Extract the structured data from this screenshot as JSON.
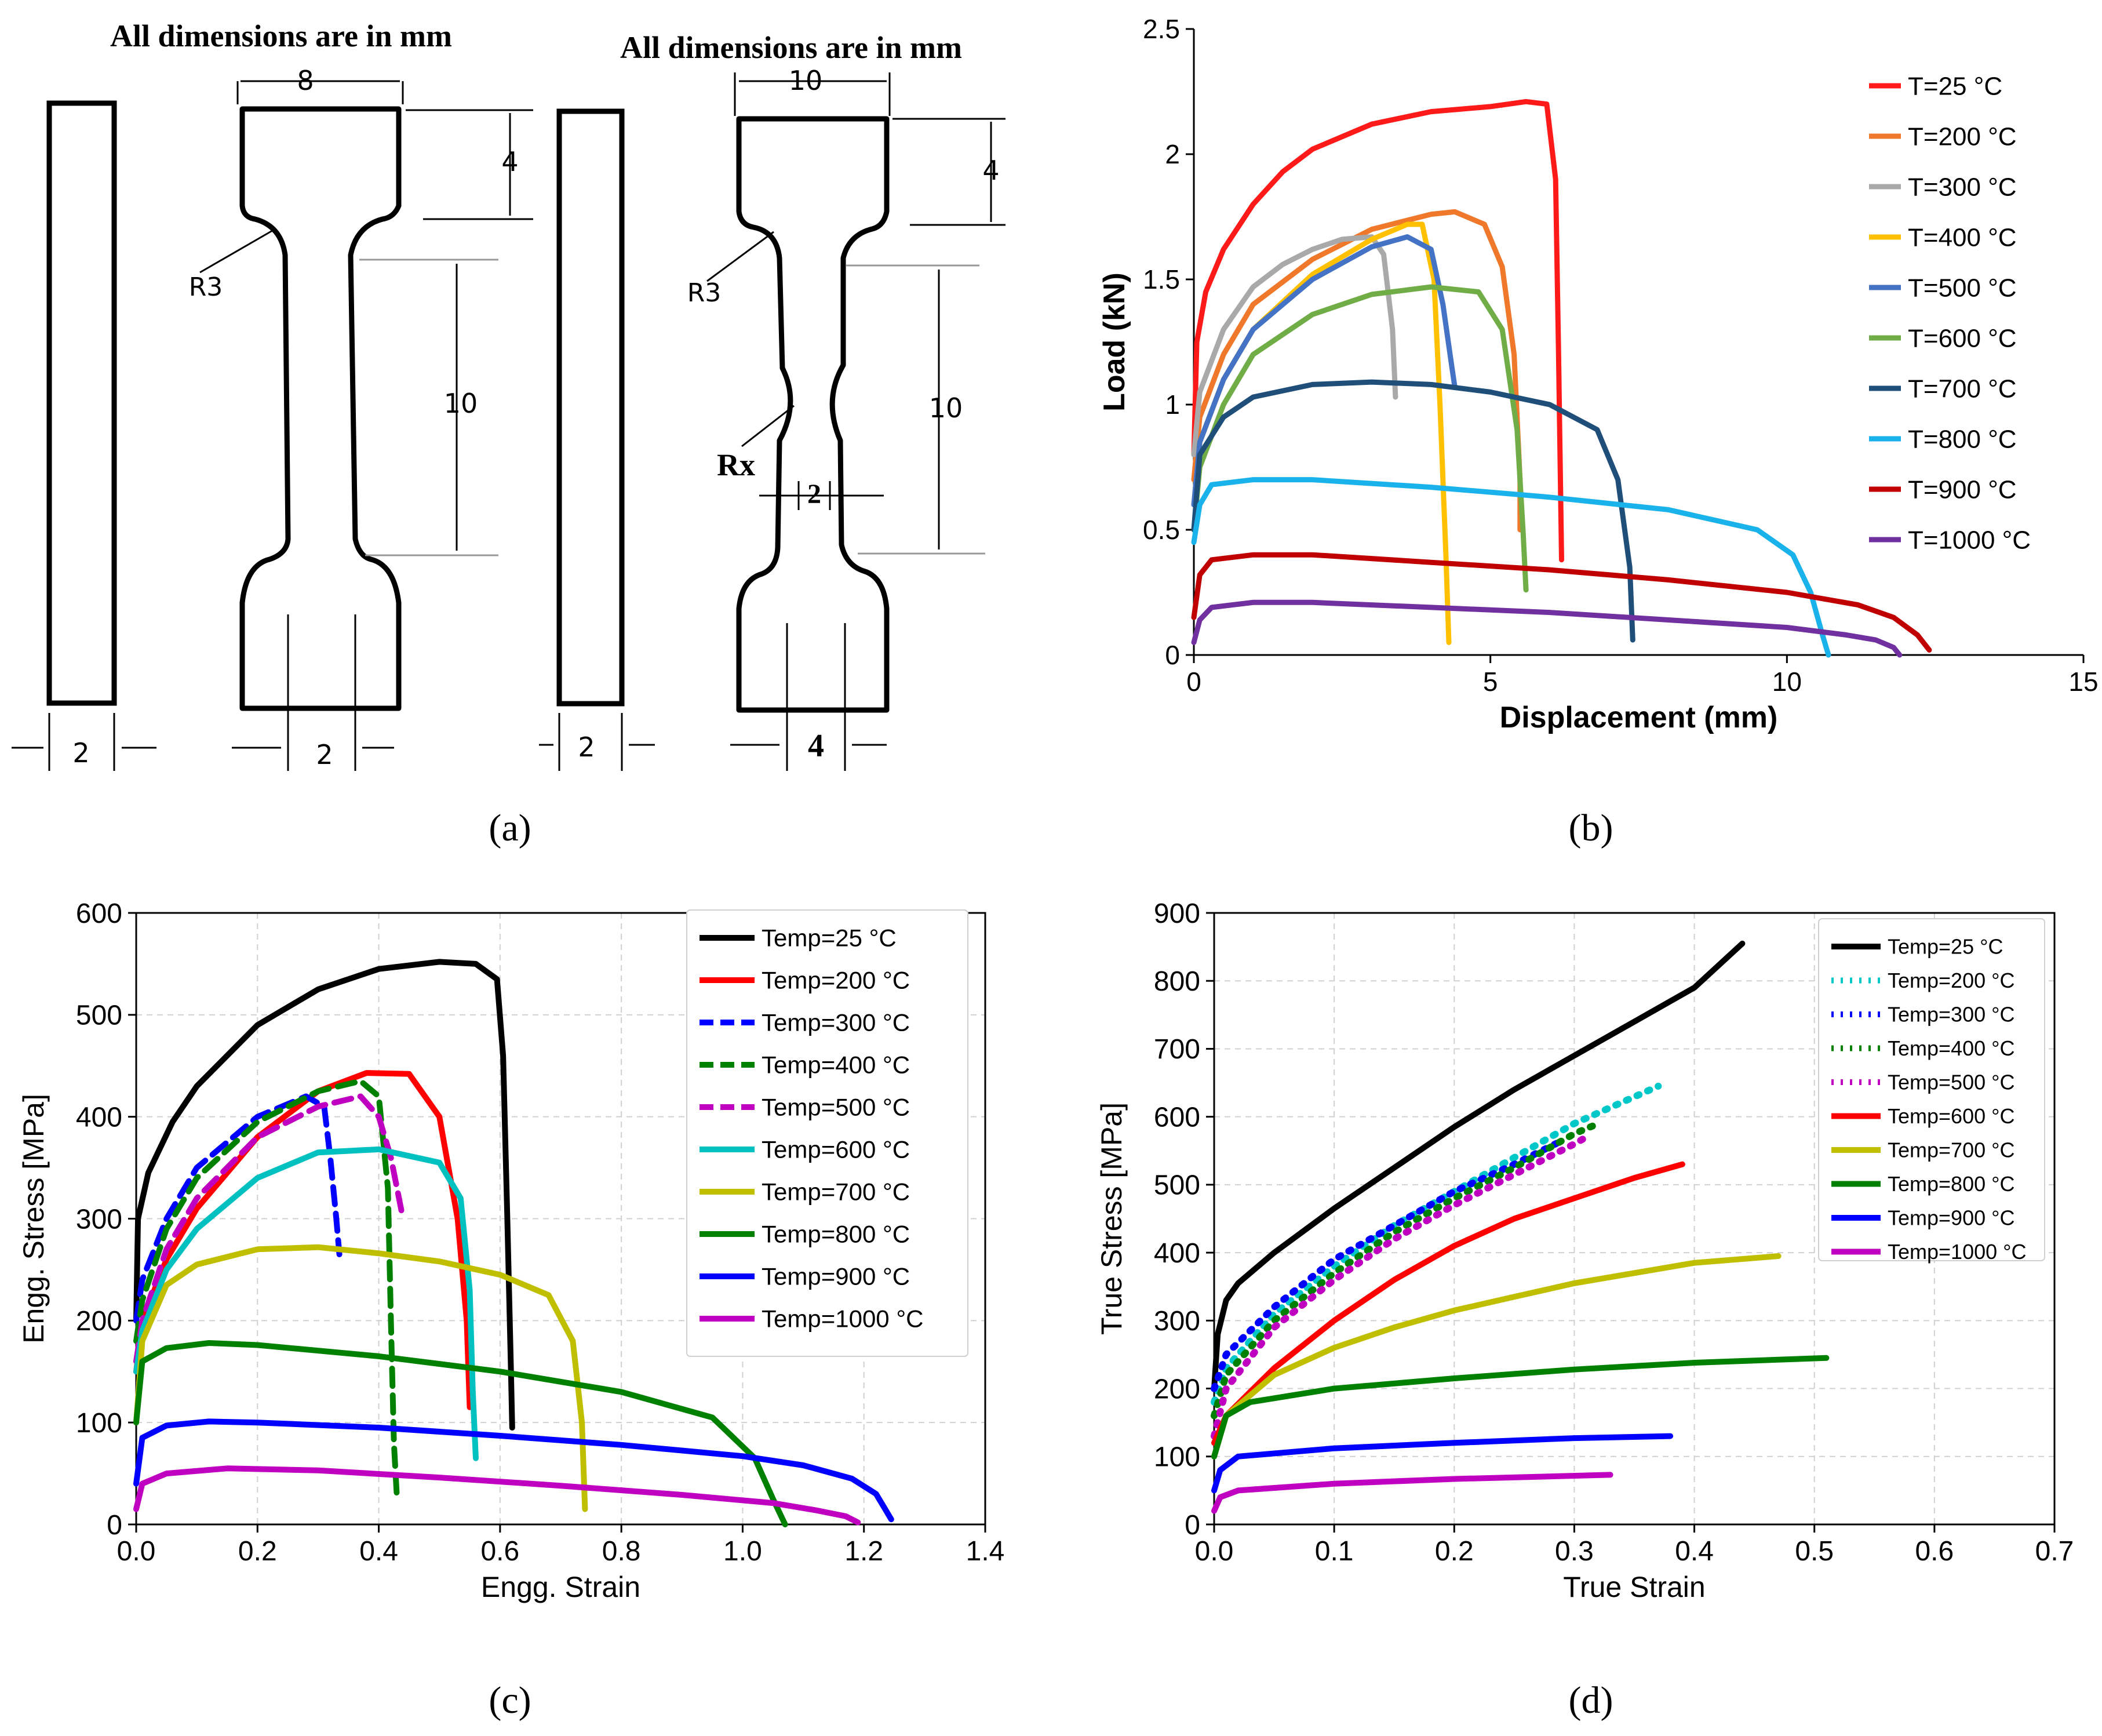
{
  "panels": {
    "a": {
      "label": "(a)",
      "left_title": "All dimensions are in mm",
      "right_title": "All dimensions are in mm",
      "left_dims": {
        "width_top": "8",
        "shoulder": "4",
        "gauge": "10",
        "radius": "R3",
        "thick": "2",
        "gauge_w": "2"
      },
      "right_dims": {
        "width_top": "10",
        "shoulder": "4",
        "gauge": "10",
        "radius": "R3",
        "notch_radius": "Rx",
        "notch_w": "2",
        "thick": "2",
        "gauge_w": "4"
      }
    },
    "b": {
      "label": "(b)"
    },
    "c": {
      "label": "(c)"
    },
    "d": {
      "label": "(d)"
    }
  },
  "colors": {
    "c25": "#000000",
    "c200_c": "#ff0000",
    "c300_c": "#0000ff",
    "c400_c": "#008000",
    "c500_c": "#c000c0",
    "c600_c": "#00c0c0",
    "c700_c": "#bfbf00",
    "c800_c": "#008000",
    "c900_c": "#0000ff",
    "c1000_c": "#c000c0"
  },
  "chart_data": [
    {
      "panel": "b",
      "type": "line",
      "xlabel": "Displacement (mm)",
      "ylabel": "Load (kN)",
      "xlim": [
        0,
        15
      ],
      "ylim": [
        0,
        2.5
      ],
      "xticks": [
        "0",
        "5",
        "10",
        "15"
      ],
      "yticks": [
        "0",
        "0.5",
        "1",
        "1.5",
        "2",
        "2.5"
      ],
      "grid": false,
      "legend": "right",
      "series": [
        {
          "name": "T=25 °C",
          "color": "#ff1a1a",
          "x": [
            0,
            0.05,
            0.2,
            0.5,
            1,
            1.5,
            2,
            3,
            4,
            5,
            5.6,
            5.95,
            6.1,
            6.15,
            6.2
          ],
          "y": [
            0.8,
            1.25,
            1.45,
            1.62,
            1.8,
            1.93,
            2.02,
            2.12,
            2.17,
            2.19,
            2.21,
            2.2,
            1.9,
            1.2,
            0.38
          ]
        },
        {
          "name": "T=200 °C",
          "color": "#f0782a",
          "x": [
            0,
            0.1,
            0.5,
            1,
            2,
            3,
            4,
            4.4,
            4.9,
            5.2,
            5.4,
            5.5,
            5.5
          ],
          "y": [
            0.7,
            0.95,
            1.2,
            1.4,
            1.58,
            1.7,
            1.76,
            1.77,
            1.72,
            1.55,
            1.2,
            0.7,
            0.5
          ]
        },
        {
          "name": "T=300 °C",
          "color": "#a9a9a9",
          "x": [
            0,
            0.1,
            0.5,
            1,
            1.5,
            2,
            2.5,
            3,
            3.2,
            3.35,
            3.4
          ],
          "y": [
            0.8,
            1.05,
            1.3,
            1.47,
            1.56,
            1.62,
            1.66,
            1.67,
            1.6,
            1.3,
            1.03
          ]
        },
        {
          "name": "T=400 °C",
          "color": "#ffc000",
          "x": [
            0,
            0.1,
            0.5,
            1,
            2,
            3,
            3.6,
            3.85,
            4.05,
            4.15,
            4.25,
            4.3
          ],
          "y": [
            0.6,
            0.85,
            1.1,
            1.3,
            1.52,
            1.66,
            1.72,
            1.72,
            1.5,
            1.0,
            0.4,
            0.05
          ]
        },
        {
          "name": "T=500 °C",
          "color": "#4472c4",
          "x": [
            0,
            0.1,
            0.5,
            1,
            2,
            3,
            3.6,
            4.0,
            4.2,
            4.35,
            4.4
          ],
          "y": [
            0.6,
            0.85,
            1.1,
            1.3,
            1.5,
            1.63,
            1.67,
            1.62,
            1.4,
            1.15,
            1.07
          ]
        },
        {
          "name": "T=600 °C",
          "color": "#70ad47",
          "x": [
            0,
            0.1,
            0.5,
            1,
            2,
            3,
            4,
            4.8,
            5.2,
            5.45,
            5.55,
            5.6
          ],
          "y": [
            0.5,
            0.75,
            1.0,
            1.2,
            1.36,
            1.44,
            1.47,
            1.45,
            1.3,
            0.9,
            0.5,
            0.26
          ]
        },
        {
          "name": "T=700 °C",
          "color": "#1f4e79",
          "x": [
            0,
            0.1,
            0.5,
            1,
            2,
            3,
            4,
            5,
            6,
            6.8,
            7.15,
            7.35,
            7.4
          ],
          "y": [
            0.5,
            0.8,
            0.95,
            1.03,
            1.08,
            1.09,
            1.08,
            1.05,
            1.0,
            0.9,
            0.7,
            0.35,
            0.06
          ]
        },
        {
          "name": "T=800 °C",
          "color": "#1ab2ea",
          "x": [
            0,
            0.1,
            0.3,
            1,
            2,
            4,
            6,
            8,
            9.5,
            10.1,
            10.4,
            10.6,
            10.7
          ],
          "y": [
            0.45,
            0.6,
            0.68,
            0.7,
            0.7,
            0.67,
            0.63,
            0.58,
            0.5,
            0.4,
            0.25,
            0.08,
            0.0
          ]
        },
        {
          "name": "T=900 °C",
          "color": "#c00000",
          "x": [
            0,
            0.1,
            0.3,
            1,
            2,
            4,
            6,
            8,
            10,
            11.2,
            11.8,
            12.2,
            12.4
          ],
          "y": [
            0.15,
            0.32,
            0.38,
            0.4,
            0.4,
            0.37,
            0.34,
            0.3,
            0.25,
            0.2,
            0.15,
            0.08,
            0.02
          ]
        },
        {
          "name": "T=1000 °C",
          "color": "#7030a0",
          "x": [
            0,
            0.1,
            0.3,
            1,
            2,
            4,
            6,
            8,
            10,
            11,
            11.5,
            11.8,
            11.9
          ],
          "y": [
            0.05,
            0.14,
            0.19,
            0.21,
            0.21,
            0.19,
            0.17,
            0.14,
            0.11,
            0.08,
            0.06,
            0.03,
            0.0
          ]
        }
      ]
    },
    {
      "panel": "c",
      "type": "line",
      "xlabel": "Engg. Strain",
      "ylabel": "Engg. Stress [MPa]",
      "xlim": [
        0,
        1.4
      ],
      "ylim": [
        0,
        600
      ],
      "xticks": [
        "0.0",
        "0.2",
        "0.4",
        "0.6",
        "0.8",
        "1.0",
        "1.2",
        "1.4"
      ],
      "yticks": [
        "0",
        "100",
        "200",
        "300",
        "400",
        "500",
        "600"
      ],
      "grid": true,
      "legend": "top-right",
      "series": [
        {
          "name": "Temp=25 °C",
          "color": "#000000",
          "dash": false,
          "x": [
            0,
            0.003,
            0.02,
            0.06,
            0.1,
            0.2,
            0.3,
            0.4,
            0.5,
            0.56,
            0.595,
            0.605,
            0.612,
            0.618,
            0.62
          ],
          "y": [
            200,
            300,
            345,
            395,
            430,
            490,
            525,
            545,
            552,
            550,
            535,
            460,
            300,
            150,
            95
          ]
        },
        {
          "name": "Temp=200 °C",
          "color": "#ff0000",
          "dash": false,
          "x": [
            0,
            0.01,
            0.05,
            0.1,
            0.2,
            0.3,
            0.38,
            0.45,
            0.5,
            0.53,
            0.545,
            0.55
          ],
          "y": [
            150,
            200,
            260,
            310,
            380,
            425,
            443,
            442,
            400,
            300,
            200,
            115
          ]
        },
        {
          "name": "Temp=300 °C",
          "color": "#0000ff",
          "dash": true,
          "x": [
            0,
            0.01,
            0.05,
            0.1,
            0.2,
            0.28,
            0.31,
            0.32,
            0.33,
            0.335
          ],
          "y": [
            200,
            240,
            300,
            350,
            400,
            420,
            410,
            360,
            300,
            265
          ]
        },
        {
          "name": "Temp=400 °C",
          "color": "#008000",
          "dash": true,
          "x": [
            0,
            0.01,
            0.05,
            0.1,
            0.2,
            0.3,
            0.37,
            0.4,
            0.415,
            0.42,
            0.425,
            0.43
          ],
          "y": [
            180,
            220,
            290,
            340,
            395,
            425,
            435,
            420,
            330,
            200,
            80,
            25
          ]
        },
        {
          "name": "Temp=500 °C",
          "color": "#c000c0",
          "dash": true,
          "x": [
            0,
            0.01,
            0.05,
            0.1,
            0.2,
            0.3,
            0.37,
            0.4,
            0.42,
            0.43,
            0.44
          ],
          "y": [
            160,
            200,
            270,
            320,
            380,
            410,
            420,
            400,
            360,
            330,
            300
          ]
        },
        {
          "name": "Temp=600 °C",
          "color": "#00c0c0",
          "dash": false,
          "x": [
            0,
            0.01,
            0.05,
            0.1,
            0.2,
            0.3,
            0.4,
            0.5,
            0.535,
            0.55,
            0.555,
            0.56
          ],
          "y": [
            150,
            190,
            250,
            290,
            340,
            365,
            368,
            355,
            320,
            230,
            130,
            65
          ]
        },
        {
          "name": "Temp=700 °C",
          "color": "#bfbf00",
          "dash": false,
          "x": [
            0,
            0.01,
            0.05,
            0.1,
            0.2,
            0.3,
            0.4,
            0.5,
            0.6,
            0.68,
            0.72,
            0.735,
            0.74
          ],
          "y": [
            100,
            180,
            235,
            255,
            270,
            272,
            266,
            258,
            245,
            225,
            180,
            100,
            15
          ]
        },
        {
          "name": "Temp=800 °C",
          "color": "#008000",
          "dash": false,
          "x": [
            0,
            0.01,
            0.05,
            0.12,
            0.2,
            0.4,
            0.6,
            0.8,
            0.95,
            1.02,
            1.05,
            1.07
          ],
          "y": [
            100,
            160,
            173,
            178,
            176,
            165,
            150,
            130,
            105,
            65,
            25,
            0
          ]
        },
        {
          "name": "Temp=900 °C",
          "color": "#0000ff",
          "dash": false,
          "x": [
            0,
            0.01,
            0.05,
            0.12,
            0.2,
            0.4,
            0.6,
            0.8,
            1.0,
            1.1,
            1.18,
            1.22,
            1.24,
            1.245
          ],
          "y": [
            40,
            85,
            97,
            101,
            100,
            95,
            87,
            78,
            67,
            58,
            45,
            30,
            10,
            5
          ]
        },
        {
          "name": "Temp=1000 °C",
          "color": "#c000c0",
          "dash": false,
          "x": [
            0,
            0.01,
            0.05,
            0.15,
            0.3,
            0.5,
            0.7,
            0.9,
            1.05,
            1.12,
            1.17,
            1.19
          ],
          "y": [
            15,
            40,
            50,
            55,
            53,
            46,
            38,
            29,
            21,
            14,
            8,
            2
          ]
        }
      ]
    },
    {
      "panel": "d",
      "type": "line",
      "xlabel": "True Strain",
      "ylabel": "True Stress [MPa]",
      "xlim": [
        0,
        0.7
      ],
      "ylim": [
        0,
        900
      ],
      "xticks": [
        "0.0",
        "0.1",
        "0.2",
        "0.3",
        "0.4",
        "0.5",
        "0.6",
        "0.7"
      ],
      "yticks": [
        "0",
        "100",
        "200",
        "300",
        "400",
        "500",
        "600",
        "700",
        "800",
        "900"
      ],
      "grid": true,
      "legend": "top-right",
      "series": [
        {
          "name": "Temp=25 °C",
          "color": "#000000",
          "dash": "solid",
          "x": [
            0,
            0.003,
            0.01,
            0.02,
            0.05,
            0.1,
            0.15,
            0.2,
            0.25,
            0.3,
            0.35,
            0.4,
            0.44
          ],
          "y": [
            200,
            280,
            330,
            355,
            400,
            465,
            525,
            585,
            640,
            690,
            740,
            790,
            855
          ]
        },
        {
          "name": "Temp=200 °C",
          "color": "#00c8c8",
          "dash": "dot",
          "x": [
            0,
            0.01,
            0.05,
            0.1,
            0.15,
            0.2,
            0.25,
            0.3,
            0.37
          ],
          "y": [
            180,
            230,
            310,
            380,
            440,
            490,
            540,
            590,
            645
          ]
        },
        {
          "name": "Temp=300 °C",
          "color": "#0000ff",
          "dash": "dot",
          "x": [
            0,
            0.01,
            0.05,
            0.1,
            0.15,
            0.2,
            0.25,
            0.29
          ],
          "y": [
            200,
            250,
            320,
            390,
            440,
            490,
            530,
            565
          ]
        },
        {
          "name": "Temp=400 °C",
          "color": "#008000",
          "dash": "dot",
          "x": [
            0,
            0.01,
            0.05,
            0.1,
            0.15,
            0.2,
            0.25,
            0.3,
            0.32
          ],
          "y": [
            160,
            220,
            300,
            370,
            430,
            480,
            525,
            575,
            590
          ]
        },
        {
          "name": "Temp=500 °C",
          "color": "#c000c0",
          "dash": "dot",
          "x": [
            0,
            0.01,
            0.05,
            0.1,
            0.15,
            0.2,
            0.25,
            0.3,
            0.31
          ],
          "y": [
            130,
            200,
            290,
            360,
            420,
            470,
            515,
            560,
            570
          ]
        },
        {
          "name": "Temp=600 °C",
          "color": "#ff0000",
          "dash": "solid",
          "x": [
            0,
            0.01,
            0.05,
            0.1,
            0.15,
            0.2,
            0.25,
            0.3,
            0.35,
            0.39
          ],
          "y": [
            120,
            160,
            230,
            300,
            360,
            410,
            450,
            480,
            510,
            530
          ]
        },
        {
          "name": "Temp=700 °C",
          "color": "#bfbf00",
          "dash": "solid",
          "x": [
            0,
            0.01,
            0.05,
            0.1,
            0.15,
            0.2,
            0.25,
            0.3,
            0.35,
            0.4,
            0.47
          ],
          "y": [
            100,
            160,
            220,
            260,
            290,
            315,
            335,
            355,
            370,
            385,
            395
          ]
        },
        {
          "name": "Temp=800 °C",
          "color": "#008000",
          "dash": "solid",
          "x": [
            0,
            0.01,
            0.03,
            0.1,
            0.2,
            0.3,
            0.4,
            0.51
          ],
          "y": [
            100,
            160,
            180,
            200,
            215,
            228,
            238,
            245
          ]
        },
        {
          "name": "Temp=900 °C",
          "color": "#0000ff",
          "dash": "solid",
          "x": [
            0,
            0.005,
            0.02,
            0.1,
            0.2,
            0.3,
            0.38
          ],
          "y": [
            50,
            80,
            100,
            112,
            120,
            127,
            130
          ]
        },
        {
          "name": "Temp=1000 °C",
          "color": "#c000c0",
          "dash": "solid",
          "x": [
            0,
            0.005,
            0.02,
            0.1,
            0.2,
            0.33
          ],
          "y": [
            20,
            40,
            50,
            60,
            67,
            73
          ]
        }
      ]
    }
  ]
}
